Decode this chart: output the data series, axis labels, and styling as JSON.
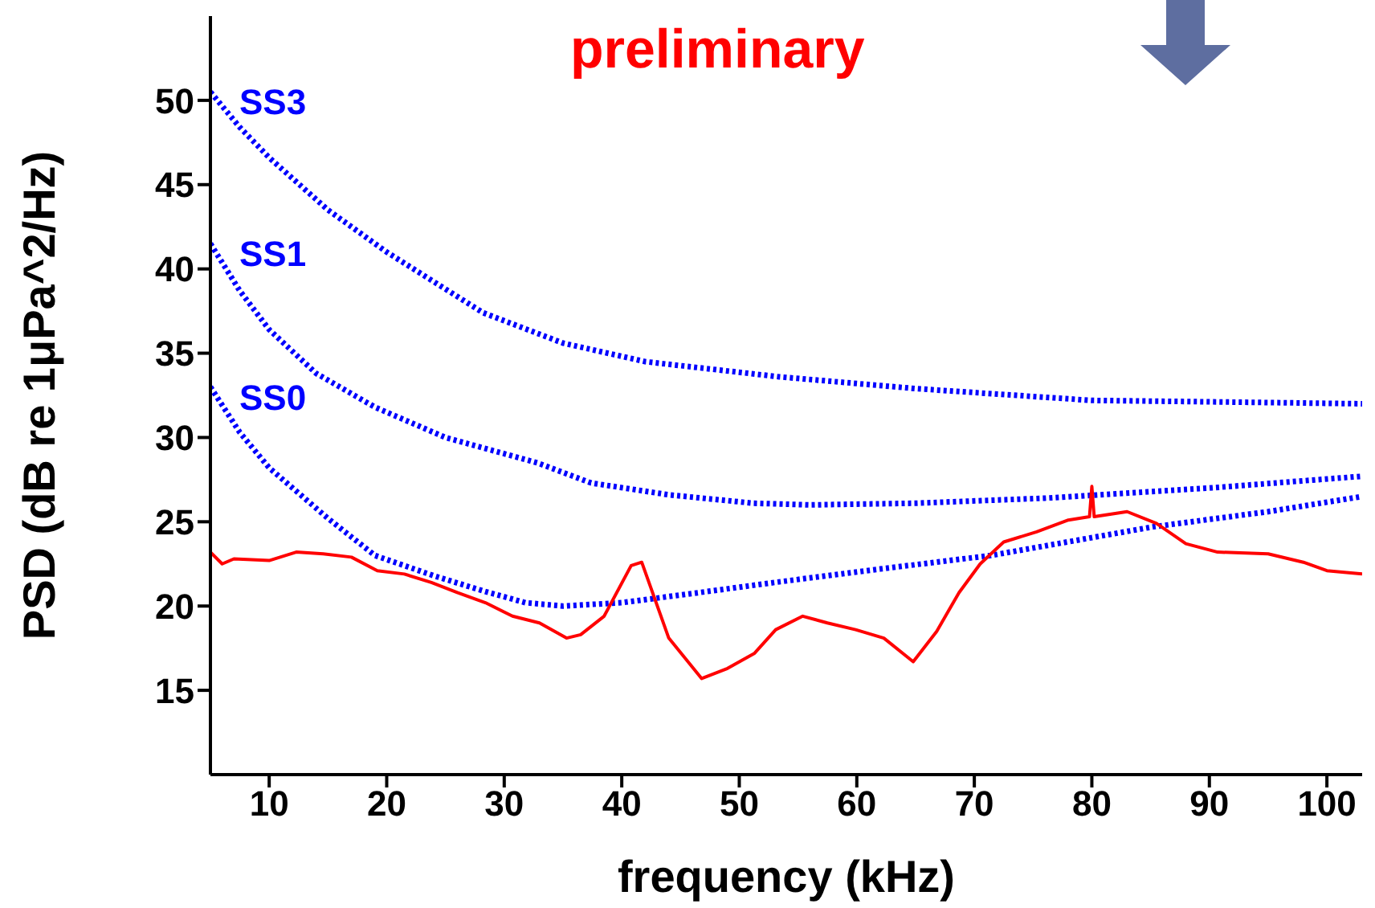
{
  "chart_data": {
    "type": "line",
    "xlabel": "frequency (kHz)",
    "ylabel": "PSD (dB re 1μPa^2/Hz)",
    "annotations": [
      "preliminary"
    ],
    "xlim": [
      5,
      103
    ],
    "xticks": [
      10,
      20,
      30,
      40,
      50,
      60,
      70,
      80,
      90,
      100
    ],
    "ylim": [
      10,
      55
    ],
    "yticks": [
      15,
      20,
      25,
      30,
      35,
      40,
      45,
      50
    ],
    "grid": false,
    "legend": false,
    "marker": "none",
    "series": [
      {
        "name": "SS3",
        "color": "#0000ff",
        "line_style": "dotted",
        "x": [
          5,
          7.5,
          10,
          15,
          20,
          28.2,
          35,
          42,
          53.4,
          65,
          80,
          92,
          103
        ],
        "values": [
          50.5,
          48.4,
          46.6,
          43.5,
          41,
          37.4,
          35.6,
          34.5,
          33.6,
          32.9,
          32.2,
          32.1,
          32.0
        ]
      },
      {
        "name": "SS1",
        "color": "#0000ff",
        "line_style": "dotted",
        "x": [
          5,
          7.5,
          10,
          14,
          19,
          25,
          32.8,
          37.4,
          44,
          51.2,
          56,
          65,
          76,
          90,
          103
        ],
        "values": [
          41.5,
          38.7,
          36.4,
          33.8,
          31.8,
          30.0,
          28.5,
          27.3,
          26.6,
          26.1,
          26.0,
          26.1,
          26.4,
          27.0,
          27.7
        ]
      },
      {
        "name": "SS0",
        "color": "#0000ff",
        "line_style": "dotted",
        "x": [
          5,
          7.5,
          10,
          15,
          19,
          24,
          28.2,
          31.8,
          35,
          40,
          46.6,
          53,
          62,
          71.4,
          85.2,
          95,
          103
        ],
        "values": [
          33,
          30.3,
          28.2,
          25.2,
          23.0,
          21.8,
          20.9,
          20.2,
          20.0,
          20.2,
          20.8,
          21.4,
          22.2,
          23.0,
          24.7,
          25.6,
          26.5
        ]
      },
      {
        "color": "#ff0000",
        "line_style": "solid",
        "x": [
          5,
          6,
          7,
          10,
          12.3,
          14.6,
          17,
          19.2,
          21.5,
          23.8,
          26,
          28.4,
          30.7,
          33,
          35.3,
          36.5,
          38.5,
          40.8,
          41.7,
          44,
          46.8,
          49,
          51.3,
          53.1,
          55.4,
          57.5,
          59.9,
          62.3,
          64.8,
          66.8,
          68.7,
          70.5,
          72.5,
          75.3,
          78,
          79.8,
          80,
          80.2,
          83,
          85.5,
          88,
          90.7,
          95,
          98,
          100,
          103
        ],
        "values": [
          23.2,
          22.5,
          22.8,
          22.7,
          23.2,
          23.1,
          22.9,
          22.1,
          21.9,
          21.4,
          20.8,
          20.2,
          19.4,
          19.0,
          18.1,
          18.3,
          19.4,
          22.4,
          22.6,
          18.1,
          15.7,
          16.3,
          17.2,
          18.6,
          19.4,
          19.0,
          18.6,
          18.1,
          16.7,
          18.5,
          20.8,
          22.5,
          23.8,
          24.4,
          25.1,
          25.3,
          27.1,
          25.3,
          25.6,
          24.9,
          23.7,
          23.2,
          23.1,
          22.6,
          22.1,
          21.9
        ]
      }
    ]
  }
}
